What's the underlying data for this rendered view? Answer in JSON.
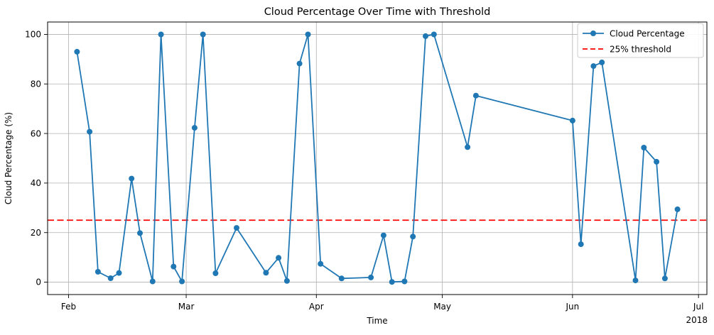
{
  "title": "Cloud Percentage Over Time with Threshold",
  "axes": {
    "x_label": "Time",
    "y_label": "Cloud Percentage (%)",
    "x_offset_label": "2018",
    "x_ticks": [
      {
        "label": "Feb",
        "date": "2018-02-01"
      },
      {
        "label": "Mar",
        "date": "2018-03-01"
      },
      {
        "label": "Apr",
        "date": "2018-04-01"
      },
      {
        "label": "May",
        "date": "2018-05-01"
      },
      {
        "label": "Jun",
        "date": "2018-06-01"
      },
      {
        "label": "Jul",
        "date": "2018-07-01"
      }
    ],
    "y_ticks": [
      0,
      20,
      40,
      60,
      80,
      100
    ]
  },
  "legend": {
    "items": [
      {
        "label": "Cloud Percentage",
        "style": "line-marker",
        "color": "#1f77b4"
      },
      {
        "label": "25% threshold",
        "style": "dashed",
        "color": "#ff0000"
      }
    ]
  },
  "colors": {
    "series": "#1f77b4",
    "threshold": "#ff0000",
    "grid": "#b0b0b0",
    "spine": "#000000",
    "legend_border": "#cccccc"
  },
  "chart_data": {
    "type": "line",
    "title": "Cloud Percentage Over Time with Threshold",
    "xlabel": "Time",
    "ylabel": "Cloud Percentage (%)",
    "year_label": "2018",
    "grid": true,
    "legend_position": "upper right",
    "xlim": [
      "2018-01-27",
      "2018-07-03"
    ],
    "ylim": [
      -5,
      105
    ],
    "x": [
      "2018-02-03",
      "2018-02-06",
      "2018-02-08",
      "2018-02-11",
      "2018-02-13",
      "2018-02-16",
      "2018-02-18",
      "2018-02-21",
      "2018-02-23",
      "2018-02-26",
      "2018-02-28",
      "2018-03-03",
      "2018-03-05",
      "2018-03-08",
      "2018-03-13",
      "2018-03-20",
      "2018-03-23",
      "2018-03-25",
      "2018-03-28",
      "2018-03-30",
      "2018-04-02",
      "2018-04-07",
      "2018-04-14",
      "2018-04-17",
      "2018-04-19",
      "2018-04-22",
      "2018-04-24",
      "2018-04-27",
      "2018-04-29",
      "2018-05-07",
      "2018-05-09",
      "2018-06-01",
      "2018-06-03",
      "2018-06-06",
      "2018-06-08",
      "2018-06-16",
      "2018-06-18",
      "2018-06-21",
      "2018-06-23",
      "2018-06-26"
    ],
    "series": [
      {
        "name": "Cloud Percentage",
        "values": [
          93.0,
          60.7,
          4.2,
          1.6,
          3.7,
          41.8,
          19.8,
          0.3,
          100.0,
          6.3,
          0.3,
          62.3,
          100.0,
          3.6,
          21.9,
          3.8,
          9.8,
          0.5,
          88.2,
          100.0,
          7.4,
          1.5,
          1.9,
          18.9,
          0.1,
          0.3,
          18.4,
          99.3,
          100.0,
          54.5,
          75.3,
          65.2,
          15.3,
          87.2,
          88.7,
          0.7,
          54.3,
          48.6,
          1.5,
          29.4
        ]
      }
    ],
    "threshold": {
      "value": 25,
      "label": "25% threshold"
    }
  }
}
